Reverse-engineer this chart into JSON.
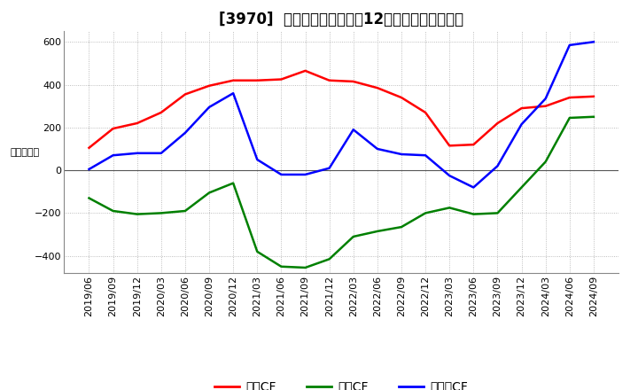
{
  "title": "[3970]  キャッシュフローの12か月移動合計の推移",
  "ylabel": "（百万円）",
  "ylim": [
    -480,
    650
  ],
  "yticks": [
    -400,
    -200,
    0,
    200,
    400,
    600
  ],
  "legend_labels": [
    "営業CF",
    "投資CF",
    "フリーCF"
  ],
  "line_colors": [
    "#ff0000",
    "#008000",
    "#0000ff"
  ],
  "dates": [
    "2019/06",
    "2019/09",
    "2019/12",
    "2020/03",
    "2020/06",
    "2020/09",
    "2020/12",
    "2021/03",
    "2021/06",
    "2021/09",
    "2021/12",
    "2022/03",
    "2022/06",
    "2022/09",
    "2022/12",
    "2023/03",
    "2023/06",
    "2023/09",
    "2023/12",
    "2024/03",
    "2024/06",
    "2024/09"
  ],
  "operating_cf": [
    105,
    195,
    220,
    270,
    355,
    395,
    420,
    420,
    425,
    465,
    420,
    415,
    385,
    340,
    270,
    115,
    120,
    220,
    290,
    300,
    340,
    345
  ],
  "investing_cf": [
    -130,
    -190,
    -205,
    -200,
    -190,
    -105,
    -60,
    -380,
    -450,
    -455,
    -415,
    -310,
    -285,
    -265,
    -200,
    -175,
    -205,
    -200,
    -80,
    40,
    245,
    250
  ],
  "free_cf": [
    5,
    70,
    80,
    80,
    175,
    295,
    360,
    50,
    -20,
    -20,
    10,
    190,
    100,
    75,
    70,
    -25,
    -80,
    20,
    215,
    335,
    585,
    600
  ],
  "background_color": "#ffffff",
  "grid_color": "#aaaaaa",
  "title_fontsize": 12,
  "tick_fontsize": 8,
  "legend_fontsize": 10,
  "linewidth": 1.8
}
